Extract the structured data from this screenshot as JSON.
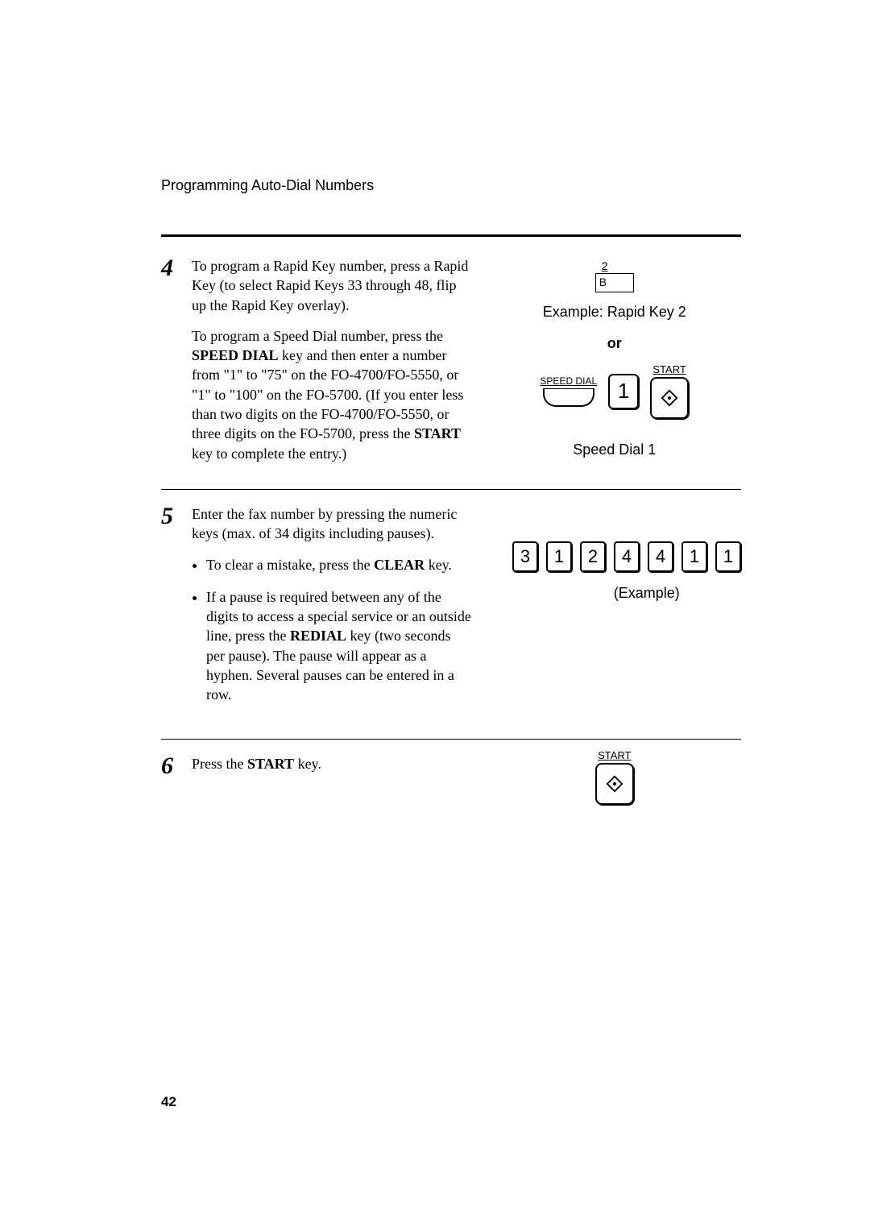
{
  "header": {
    "title": "Programming Auto-Dial Numbers"
  },
  "step4": {
    "num": "4",
    "para1_a": "To program a Rapid Key number, press a Rapid Key (to select Rapid Keys 33 through 48, flip up the Rapid Key overlay).",
    "para2_a": "To program a Speed Dial number, press the ",
    "para2_b": "SPEED DIAL",
    "para2_c": " key and then enter a number from \"1\" to \"75\" on the FO-4700/FO-5550, or \"1\" to \"100\" on the FO-5700. (If you enter less than two digits on the FO-4700/FO-5550, or three digits on the FO-5700, press the ",
    "para2_d": "START",
    "para2_e": " key to complete the entry.)",
    "rapidkey_digit": "2",
    "rapidkey_letter": "B",
    "rapidkey_caption": "Example: Rapid Key 2",
    "or": "or",
    "speed_dial_label": "SPEED DIAL",
    "num1": "1",
    "start_label": "START",
    "speed_caption": "Speed Dial 1"
  },
  "step5": {
    "num": "5",
    "para1": "Enter the fax number by pressing the numeric keys (max. of 34 digits including pauses).",
    "bullet1_a": "To clear a mistake, press the ",
    "bullet1_b": "CLEAR",
    "bullet1_c": " key.",
    "bullet2_a": "If a pause is required between any of the digits to access a special service or an outside line, press the ",
    "bullet2_b": "REDIAL",
    "bullet2_c": " key (two seconds per pause). The pause will appear as a hyphen. Several pauses can be entered in a row.",
    "digits": [
      "3",
      "1",
      "2",
      "4",
      "4",
      "1",
      "1"
    ],
    "example": "(Example)"
  },
  "step6": {
    "num": "6",
    "text_a": "Press the ",
    "text_b": "START",
    "text_c": " key.",
    "start_label": "START"
  },
  "page_number": "42"
}
